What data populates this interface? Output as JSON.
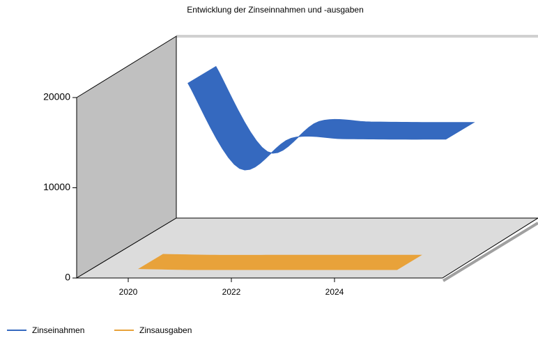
{
  "chart_data": {
    "type": "line3d",
    "title": "Entwicklung der Zinseinnahmen und -ausgaben",
    "categories": [
      "2020",
      null,
      "2022",
      null,
      "2024",
      null
    ],
    "series": [
      {
        "name": "Zinseinahmen",
        "color": "#3569bf",
        "values": [
          17600,
          8150,
          11500,
          11450,
          11400,
          11400
        ]
      },
      {
        "name": "Zinsausgaben",
        "color": "#e8a23a",
        "values": [
          300,
          200,
          200,
          200,
          200,
          200
        ]
      }
    ],
    "ylim": [
      0,
      20000
    ],
    "yticks": [
      0,
      10000,
      20000
    ]
  }
}
